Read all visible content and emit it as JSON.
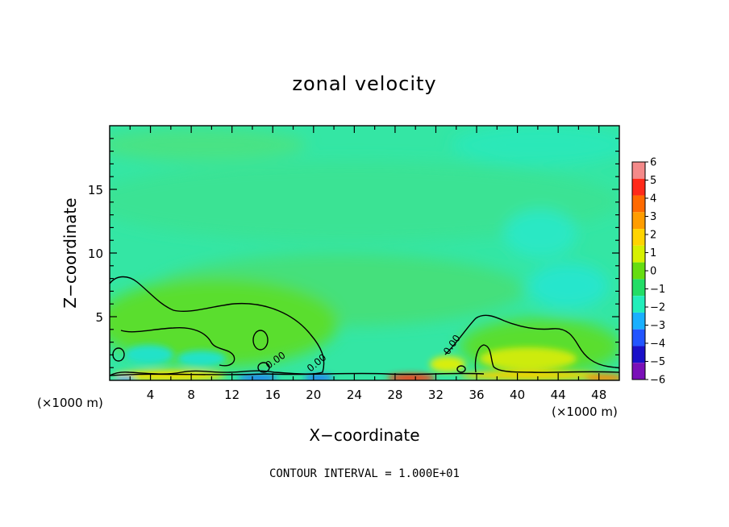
{
  "chart_data": {
    "type": "heatmap",
    "title": "zonal velocity",
    "xlabel": "X−coordinate",
    "ylabel": "Z−coordinate",
    "x_unit_left": "(×1000 m)",
    "x_unit_right": "(×1000 m)",
    "xlim": [
      0,
      50
    ],
    "ylim": [
      0,
      20
    ],
    "x_ticks": [
      4,
      8,
      12,
      16,
      20,
      24,
      28,
      32,
      36,
      40,
      44,
      48
    ],
    "x_tick_labels": [
      "4",
      "8",
      "12",
      "16",
      "20",
      "24",
      "28",
      "32",
      "36",
      "40",
      "44",
      "48"
    ],
    "y_ticks": [
      5,
      10,
      15
    ],
    "y_tick_labels": [
      "5",
      "10",
      "15"
    ],
    "colorbar": {
      "levels": [
        6,
        5,
        4,
        3,
        2,
        1,
        0,
        -1,
        -2,
        -3,
        -4,
        -5,
        -6
      ],
      "labels": [
        "6",
        "5",
        "4",
        "3",
        "2",
        "1",
        "0",
        "−1",
        "−2",
        "−3",
        "−4",
        "−5",
        "−6"
      ],
      "colors": [
        "#f48a8a",
        "#ff2a1a",
        "#ff6a00",
        "#ff9d00",
        "#ffd400",
        "#d6f000",
        "#66dd11",
        "#22dd66",
        "#22eebb",
        "#1ab0ff",
        "#2255ff",
        "#1a10c8",
        "#7a10b8"
      ]
    },
    "contour_level": 0,
    "contour_labels": [
      "0.00",
      "0.00",
      "0.00"
    ],
    "footnote": "CONTOUR INTERVAL = 1.000E+01"
  }
}
